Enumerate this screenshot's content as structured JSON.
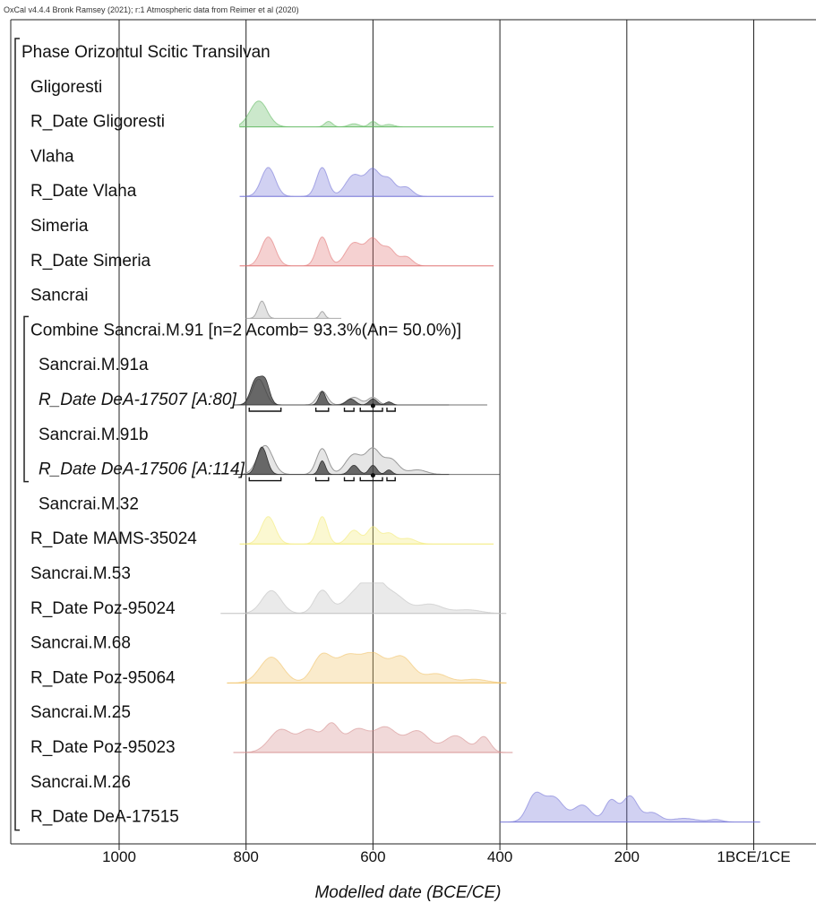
{
  "header": "OxCal v4.4.4 Bronk Ramsey (2021); r:1 Atmospheric data from Reimer et al (2020)",
  "chart_data": {
    "type": "area",
    "title": "",
    "xlabel": "Modelled date (BCE/CE)",
    "xlim": [
      1190,
      -50
    ],
    "x_ticks": [
      {
        "value": 1000,
        "label": "1000"
      },
      {
        "value": 800,
        "label": "800"
      },
      {
        "value": 600,
        "label": "600"
      },
      {
        "value": 400,
        "label": "400"
      },
      {
        "value": 200,
        "label": "200"
      },
      {
        "value": 0,
        "label": "1BCE/1CE"
      }
    ],
    "grid": true,
    "rows": [
      {
        "label": "Phase Orizontul Scitic Transilvan",
        "kind": "phase"
      },
      {
        "label": "Gligoresti",
        "kind": "label"
      },
      {
        "label": "R_Date Gligoresti",
        "kind": "dist",
        "color": "#5cb85c",
        "range": [
          810,
          410
        ],
        "peaks": [
          [
            780,
            14,
            0.85
          ],
          [
            670,
            6,
            0.18
          ],
          [
            630,
            8,
            0.1
          ],
          [
            600,
            6,
            0.18
          ],
          [
            575,
            8,
            0.08
          ]
        ]
      },
      {
        "label": "Vlaha",
        "kind": "label"
      },
      {
        "label": "R_Date Vlaha",
        "kind": "dist",
        "color": "#6f6fd6",
        "range": [
          810,
          410
        ],
        "peaks": [
          [
            765,
            11,
            0.95
          ],
          [
            680,
            9,
            0.95
          ],
          [
            630,
            13,
            0.7
          ],
          [
            600,
            11,
            0.85
          ],
          [
            575,
            10,
            0.55
          ],
          [
            548,
            10,
            0.3
          ]
        ]
      },
      {
        "label": "Simeria",
        "kind": "label"
      },
      {
        "label": "R_Date Simeria",
        "kind": "dist",
        "color": "#e07070",
        "range": [
          810,
          410
        ],
        "peaks": [
          [
            765,
            11,
            0.95
          ],
          [
            680,
            9,
            0.95
          ],
          [
            630,
            13,
            0.75
          ],
          [
            600,
            11,
            0.85
          ],
          [
            575,
            10,
            0.55
          ],
          [
            548,
            10,
            0.3
          ]
        ]
      },
      {
        "label": "Sancrai",
        "kind": "label"
      },
      {
        "label": "Combine Sancrai.M.91 [n=2 Acomb= 93.3%(An= 50.0%)]",
        "kind": "combine",
        "color": "#9a9a9a",
        "peaks": [
          [
            775,
            6,
            0.75
          ],
          [
            680,
            4,
            0.3
          ]
        ]
      },
      {
        "label": "Sancrai.M.91a",
        "kind": "label"
      },
      {
        "label": "R_Date DeA-17507 [A:80]",
        "kind": "dist",
        "italic": true,
        "color": "#333333",
        "range": [
          810,
          420
        ],
        "peaks": [
          [
            785,
            8,
            0.8
          ],
          [
            770,
            7,
            0.75
          ],
          [
            680,
            5,
            0.45
          ],
          [
            635,
            7,
            0.2
          ],
          [
            600,
            6,
            0.2
          ],
          [
            575,
            5,
            0.1
          ]
        ],
        "ghost": [
          [
            780,
            10,
            0.85
          ],
          [
            680,
            8,
            0.45
          ],
          [
            630,
            10,
            0.25
          ],
          [
            600,
            8,
            0.25
          ]
        ],
        "ranges": [
          [
            795,
            745
          ],
          [
            690,
            670
          ],
          [
            645,
            630
          ],
          [
            620,
            585
          ],
          [
            578,
            565
          ]
        ]
      },
      {
        "label": "Sancrai.M.91b",
        "kind": "label"
      },
      {
        "label": "R_Date DeA-17506 [A:114]",
        "kind": "dist",
        "italic": true,
        "color": "#333333",
        "range": [
          810,
          400
        ],
        "peaks": [
          [
            775,
            8,
            0.9
          ],
          [
            680,
            5,
            0.45
          ],
          [
            630,
            7,
            0.3
          ],
          [
            600,
            6,
            0.3
          ],
          [
            575,
            5,
            0.15
          ]
        ],
        "ghost": [
          [
            770,
            12,
            0.95
          ],
          [
            680,
            9,
            0.85
          ],
          [
            630,
            13,
            0.65
          ],
          [
            600,
            11,
            0.8
          ],
          [
            572,
            12,
            0.5
          ],
          [
            530,
            14,
            0.15
          ]
        ],
        "ranges": [
          [
            795,
            745
          ],
          [
            690,
            670
          ],
          [
            645,
            630
          ],
          [
            620,
            585
          ],
          [
            578,
            565
          ]
        ]
      },
      {
        "label": "Sancrai.M.32",
        "kind": "label"
      },
      {
        "label": "R_Date MAMS-35024",
        "kind": "dist",
        "color": "#f2ea70",
        "range": [
          810,
          410
        ],
        "peaks": [
          [
            765,
            11,
            0.9
          ],
          [
            680,
            8,
            0.9
          ],
          [
            630,
            10,
            0.45
          ],
          [
            600,
            9,
            0.55
          ],
          [
            575,
            10,
            0.35
          ],
          [
            545,
            12,
            0.18
          ]
        ]
      },
      {
        "label": "Sancrai.M.53",
        "kind": "label"
      },
      {
        "label": "R_Date Poz-95024",
        "kind": "dist",
        "color": "#bdbdbd",
        "range": [
          840,
          390
        ],
        "peaks": [
          [
            760,
            15,
            0.75
          ],
          [
            680,
            12,
            0.75
          ],
          [
            625,
            20,
            0.7
          ],
          [
            600,
            14,
            0.8
          ],
          [
            570,
            20,
            0.65
          ],
          [
            510,
            20,
            0.3
          ],
          [
            450,
            20,
            0.12
          ]
        ]
      },
      {
        "label": "Sancrai.M.68",
        "kind": "label"
      },
      {
        "label": "R_Date Poz-95064",
        "kind": "dist",
        "color": "#f0c060",
        "range": [
          830,
          390
        ],
        "peaks": [
          [
            760,
            18,
            0.85
          ],
          [
            680,
            15,
            0.9
          ],
          [
            640,
            18,
            0.85
          ],
          [
            600,
            18,
            0.9
          ],
          [
            555,
            18,
            0.85
          ],
          [
            500,
            18,
            0.3
          ],
          [
            440,
            20,
            0.12
          ]
        ]
      },
      {
        "label": "Sancrai.M.25",
        "kind": "label"
      },
      {
        "label": "R_Date Poz-95023",
        "kind": "dist",
        "color": "#d48a8a",
        "range": [
          820,
          380
        ],
        "peaks": [
          [
            745,
            18,
            0.75
          ],
          [
            700,
            16,
            0.72
          ],
          [
            665,
            12,
            0.85
          ],
          [
            625,
            18,
            0.75
          ],
          [
            580,
            18,
            0.8
          ],
          [
            530,
            18,
            0.7
          ],
          [
            470,
            18,
            0.55
          ],
          [
            425,
            10,
            0.5
          ]
        ]
      },
      {
        "label": "Sancrai.M.26",
        "kind": "label"
      },
      {
        "label": "R_Date DeA-17515",
        "kind": "dist",
        "color": "#6f6fd6",
        "range": [
          400,
          -10
        ],
        "peaks": [
          [
            345,
            12,
            0.85
          ],
          [
            315,
            15,
            0.8
          ],
          [
            270,
            14,
            0.55
          ],
          [
            225,
            10,
            0.7
          ],
          [
            195,
            12,
            0.85
          ],
          [
            160,
            12,
            0.3
          ],
          [
            110,
            20,
            0.12
          ],
          [
            60,
            10,
            0.08
          ]
        ]
      }
    ]
  }
}
